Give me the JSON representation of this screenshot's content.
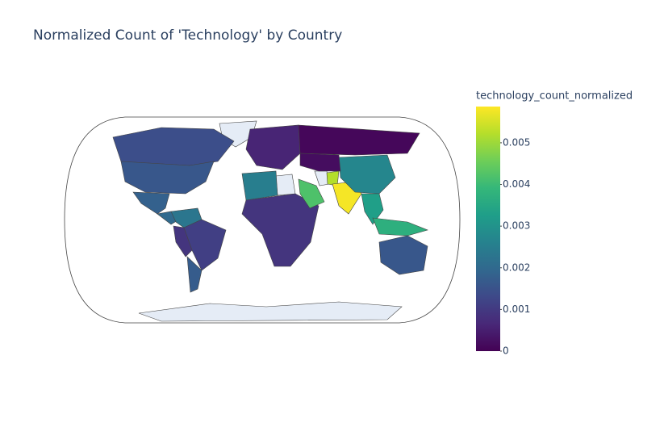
{
  "chart_data": {
    "type": "choropleth",
    "title": "Normalized Count of 'Technology' by Country",
    "colorbar_title": "technology_count_normalized",
    "colorscale": "Viridis",
    "zlim": [
      0,
      0.00587
    ],
    "zticks": [
      0,
      0.001,
      0.002,
      0.003,
      0.004,
      0.005
    ],
    "z": [
      0.0014,
      0.0016,
      0.0018,
      0.002,
      0.0023,
      0.0011,
      0.0009,
      0.0017,
      0.0006,
      0.0001,
      0.0025,
      0.0009,
      0.0042,
      0.0052,
      0.0058,
      0.0027,
      0.0033,
      0.0037,
      0.0016,
      0.0002
    ]
  }
}
